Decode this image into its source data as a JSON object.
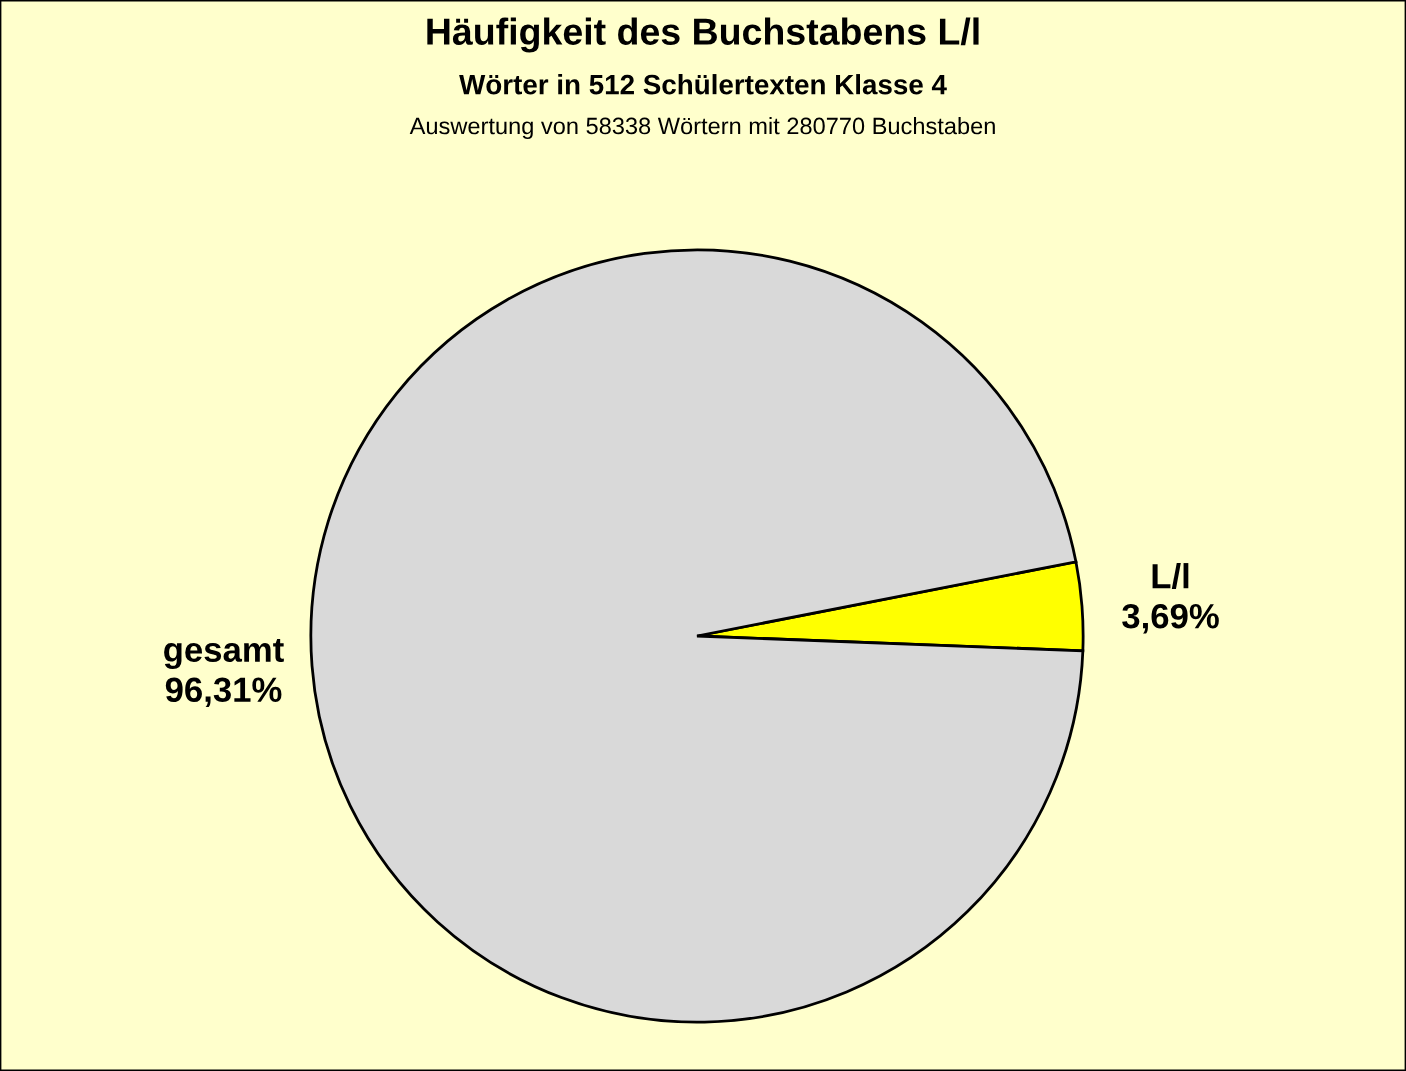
{
  "chart_data": {
    "type": "pie",
    "title": "Häufigkeit des Buchstabens L/l",
    "subtitle": "Wörter in 512 Schülertexten Klasse 4",
    "annotations": [
      "Auswertung von 58338 Wörtern mit 280770 Buchstaben"
    ],
    "categories": [
      "L/l",
      "gesamt"
    ],
    "values": [
      3.69,
      96.31
    ],
    "colors": [
      "#ffff00",
      "#d9d9d9"
    ],
    "value_labels": [
      "3,69%",
      "96,31%"
    ],
    "legend": false
  }
}
